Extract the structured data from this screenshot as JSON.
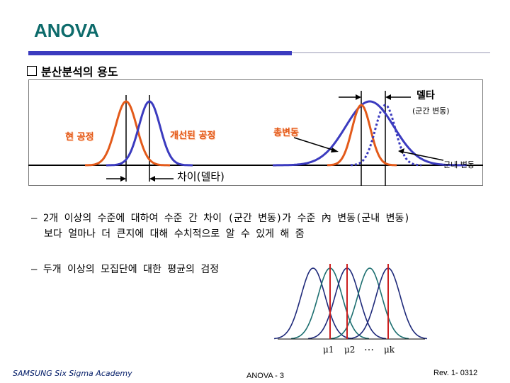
{
  "header": {
    "title": "ANOVA",
    "subtitle": "분산분석의 용도"
  },
  "diagram": {
    "label_delta": "델타",
    "label_between": "(군간 변동)",
    "label_current": "현 공정",
    "label_improved": "개선된 공정",
    "label_total": "총변동",
    "label_within": "군내 변동",
    "label_difference": "차이(델타)"
  },
  "body": {
    "bullet1_line1": "– 2개 이상의 수준에 대하여 수준 간 차이 (군간 변동)가 수준 內 변동(군내 변동)",
    "bullet1_line2": "보다 얼마나 더 큰지에 대해 수치적으로 알 수 있게 해 줌",
    "bullet2": "– 두개 이상의 모집단에 대한 평균의 검정"
  },
  "means": {
    "mu1": "μ1",
    "mu2": "μ2",
    "dots": "…",
    "muk": "μk"
  },
  "footer": {
    "left": "SAMSUNG Six Sigma Academy",
    "center": "ANOVA - 3",
    "right": "Rev. 1- 0312"
  },
  "colors": {
    "title": "#0d6b6b",
    "accent_blue": "#3b3bbf",
    "orange": "#e35a1a",
    "navy_curve": "#1f2a7a",
    "teal_curve": "#1d6f70",
    "red_line": "#cc1f1f"
  }
}
